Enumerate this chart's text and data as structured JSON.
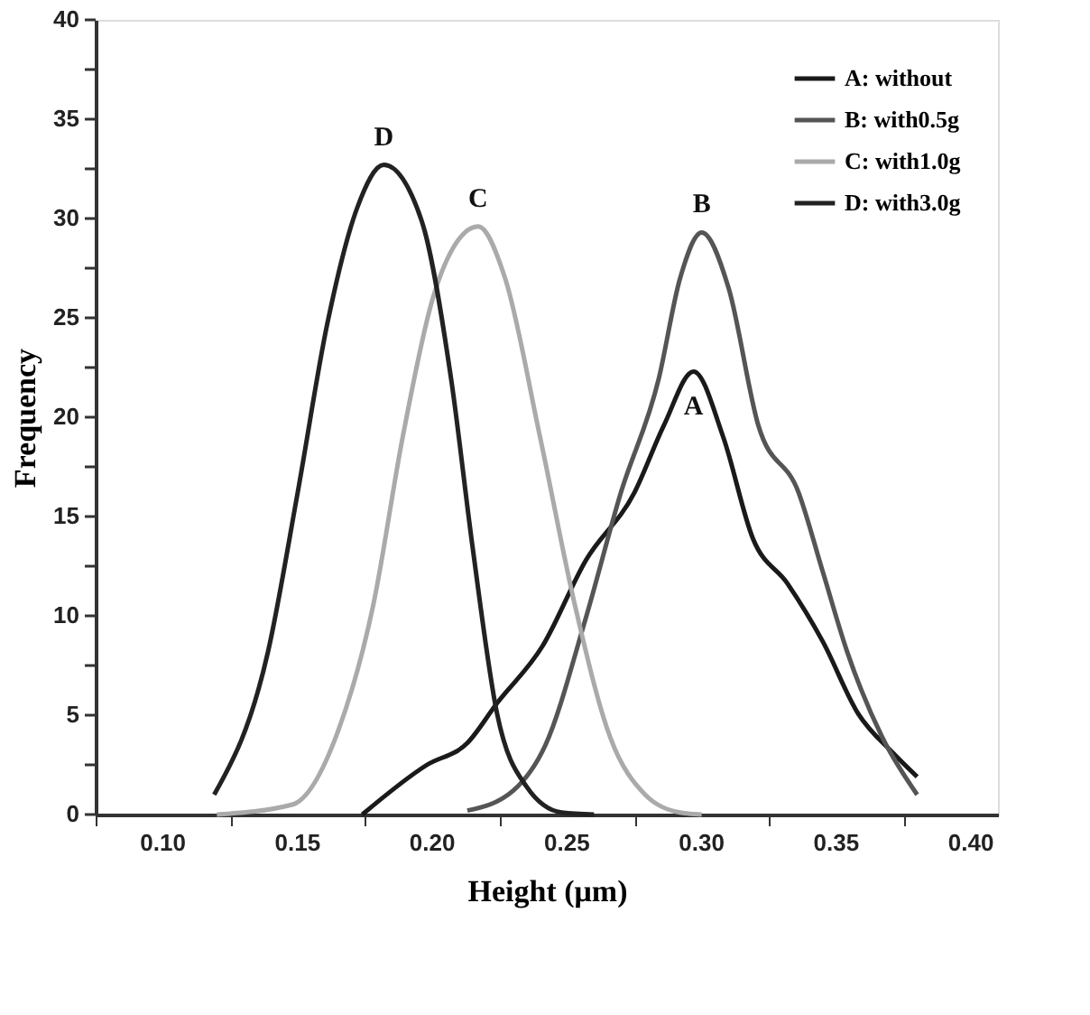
{
  "chart_data": {
    "type": "line",
    "xlabel": "Height (μm)",
    "ylabel": "Frequency",
    "xlim": [
      0.075,
      0.41
    ],
    "ylim": [
      0,
      40
    ],
    "xticks": [
      {
        "value": 0.075,
        "label": null
      },
      {
        "value": 0.1,
        "label": "0.10"
      },
      {
        "value": 0.125,
        "label": null
      },
      {
        "value": 0.15,
        "label": "0.15"
      },
      {
        "value": 0.175,
        "label": null
      },
      {
        "value": 0.2,
        "label": "0.20"
      },
      {
        "value": 0.225,
        "label": null
      },
      {
        "value": 0.25,
        "label": "0.25"
      },
      {
        "value": 0.275,
        "label": null
      },
      {
        "value": 0.3,
        "label": "0.30"
      },
      {
        "value": 0.325,
        "label": null
      },
      {
        "value": 0.35,
        "label": "0.35"
      },
      {
        "value": 0.375,
        "label": null
      },
      {
        "value": 0.4,
        "label": "0.40"
      }
    ],
    "yticks": [
      0,
      {
        "value": 2.5,
        "label": null
      },
      5,
      {
        "value": 7.5,
        "label": null
      },
      10,
      {
        "value": 12.5,
        "label": null
      },
      15,
      {
        "value": 17.5,
        "label": null
      },
      20,
      {
        "value": 22.5,
        "label": null
      },
      25,
      {
        "value": 27.5,
        "label": null
      },
      30,
      {
        "value": 32.5,
        "label": null
      },
      35,
      {
        "value": 37.5,
        "label": null
      },
      40
    ],
    "grid": false,
    "legend": "top right",
    "marker": "none",
    "line_style": "solid",
    "series": [
      {
        "name": "A: without",
        "color": "#1a1a1a",
        "x": [
          0.174,
          0.198,
          0.213,
          0.224,
          0.241,
          0.257,
          0.275,
          0.286,
          0.297,
          0.308,
          0.319,
          0.332,
          0.345,
          0.358,
          0.371,
          0.38
        ],
        "values": [
          0,
          2.5,
          3.6,
          5.6,
          8.5,
          12.8,
          16.2,
          19.6,
          22.3,
          19,
          13.9,
          11.6,
          8.7,
          5.1,
          3.1,
          1.9
        ]
      },
      {
        "name": "B: with0.5g",
        "color": "#555555",
        "x": [
          0.213,
          0.23,
          0.242,
          0.257,
          0.27,
          0.284,
          0.292,
          0.3,
          0.31,
          0.321,
          0.336,
          0.345,
          0.354,
          0.367,
          0.38
        ],
        "values": [
          0.2,
          1.2,
          3.5,
          9.9,
          16.2,
          21.9,
          27,
          29.3,
          26.5,
          19.6,
          16.2,
          12.2,
          8.2,
          3.9,
          1
        ]
      },
      {
        "name": "C: with1.0g",
        "color": "#aaaaaa",
        "x": [
          0.12,
          0.148,
          0.165,
          0.178,
          0.189,
          0.2,
          0.209,
          0.217,
          0.227,
          0.24,
          0.253,
          0.266,
          0.279,
          0.292,
          0.3
        ],
        "values": [
          0,
          0.5,
          4.2,
          10.5,
          19,
          25.9,
          28.8,
          29.6,
          27,
          19,
          10.5,
          3.9,
          1,
          0.1,
          0
        ]
      },
      {
        "name": "D: with3.0g",
        "color": "#222222",
        "x": [
          0.119,
          0.139,
          0.15,
          0.161,
          0.172,
          0.182,
          0.196,
          0.207,
          0.215,
          0.224,
          0.235,
          0.248,
          0.26
        ],
        "values": [
          1,
          8.2,
          16.2,
          24.7,
          30.5,
          32.7,
          29.9,
          21.9,
          13.4,
          5.1,
          1.4,
          0.1,
          0
        ]
      }
    ],
    "annotations": [
      {
        "text": "A",
        "x": 0.297,
        "y": 22.3
      },
      {
        "text": "B",
        "x": 0.3,
        "y": 29.3
      },
      {
        "text": "C",
        "x": 0.217,
        "y": 29.6
      },
      {
        "text": "D",
        "x": 0.182,
        "y": 32.7
      }
    ]
  }
}
